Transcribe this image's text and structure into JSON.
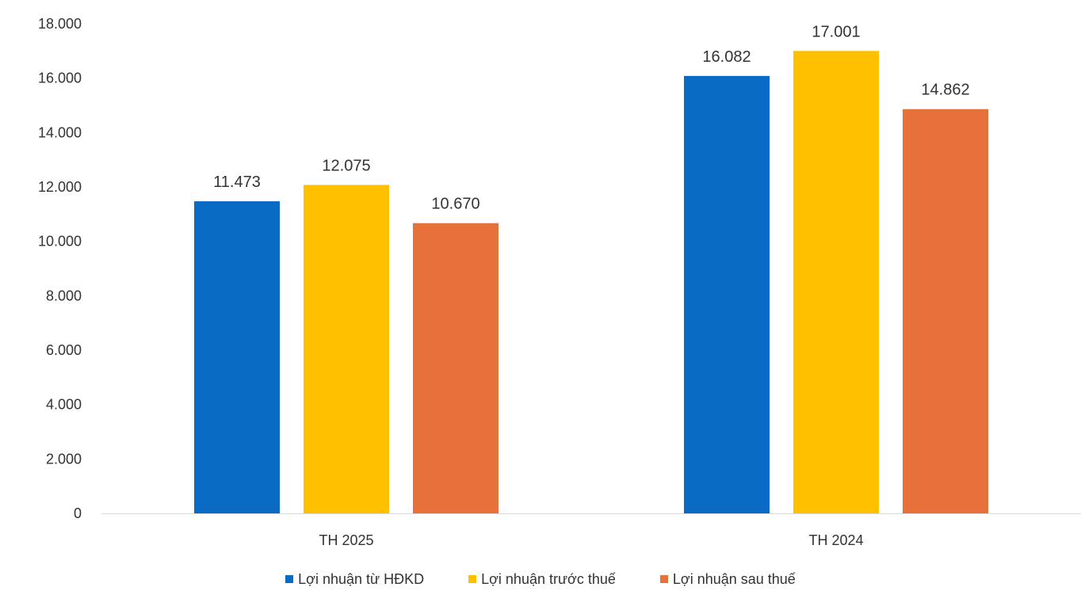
{
  "chart_data": {
    "type": "bar",
    "categories": [
      "TH 2025",
      "TH 2024"
    ],
    "series": [
      {
        "name": "Lợi nhuận từ HĐKD",
        "color": "#0A6BC4",
        "values": [
          11473,
          16082
        ],
        "labels": [
          "11.473",
          "16.082"
        ]
      },
      {
        "name": "Lợi nhuận trước thuế",
        "color": "#FFC000",
        "values": [
          12075,
          17001
        ],
        "labels": [
          "12.075",
          "17.001"
        ]
      },
      {
        "name": "Lợi nhuận sau thuế",
        "color": "#E8703A",
        "values": [
          10670,
          14862
        ],
        "labels": [
          "10.670",
          "14.862"
        ]
      }
    ],
    "ylim": [
      0,
      18000
    ],
    "yticks": [
      0,
      2000,
      4000,
      6000,
      8000,
      10000,
      12000,
      14000,
      16000,
      18000
    ],
    "ytick_labels": [
      "0",
      "2.000",
      "4.000",
      "6.000",
      "8.000",
      "10.000",
      "12.000",
      "14.000",
      "16.000",
      "18.000"
    ],
    "grid": false,
    "legend_position": "bottom"
  }
}
